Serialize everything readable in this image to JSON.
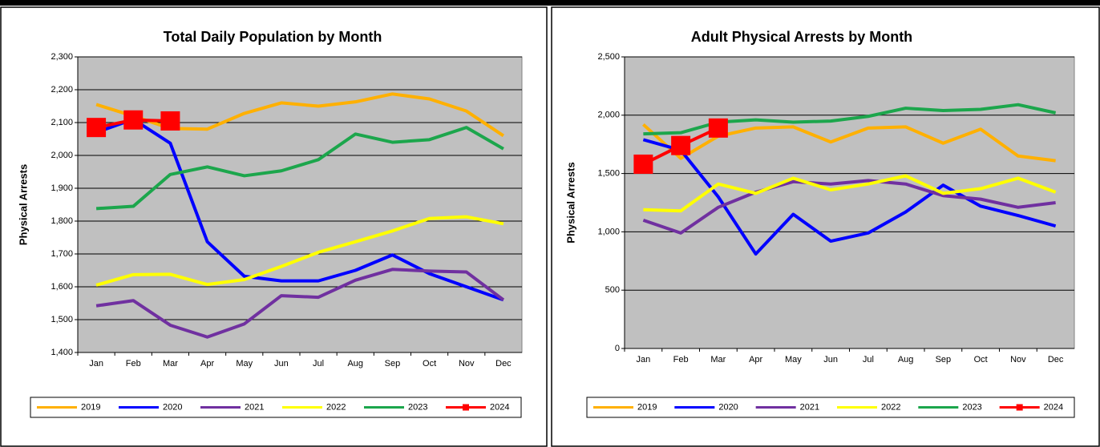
{
  "chart_data": [
    {
      "type": "line",
      "title": "Total Daily Population by Month",
      "y_label": "Physical Arrests",
      "categories": [
        "Jan",
        "Feb",
        "Mar",
        "Apr",
        "May",
        "Jun",
        "Jul",
        "Aug",
        "Sep",
        "Oct",
        "Nov",
        "Dec"
      ],
      "ylim": [
        1400,
        2300
      ],
      "yticks": [
        {
          "value": 1400,
          "label": "1,400"
        },
        {
          "value": 1500,
          "label": "1,500"
        },
        {
          "value": 1600,
          "label": "1,600"
        },
        {
          "value": 1700,
          "label": "1,700"
        },
        {
          "value": 1800,
          "label": "1,800"
        },
        {
          "value": 1900,
          "label": "1,900"
        },
        {
          "value": 2000,
          "label": "2,000"
        },
        {
          "value": 2100,
          "label": "2,100"
        },
        {
          "value": 2200,
          "label": "2,200"
        },
        {
          "value": 2300,
          "label": "2,300"
        }
      ],
      "grid": true,
      "legend": "bottom",
      "series": [
        {
          "name": "2019",
          "color": "#ffb000",
          "values": [
            2155,
            2120,
            2082,
            2080,
            2128,
            2160,
            2150,
            2163,
            2187,
            2172,
            2135,
            2060
          ]
        },
        {
          "name": "2020",
          "color": "#0000ff",
          "values": [
            2070,
            2110,
            2037,
            1737,
            1632,
            1618,
            1618,
            1650,
            1697,
            1640,
            1600,
            1560
          ]
        },
        {
          "name": "2021",
          "color": "#7030a0",
          "values": [
            1542,
            1558,
            1483,
            1447,
            1487,
            1573,
            1568,
            1620,
            1653,
            1648,
            1645,
            1560
          ]
        },
        {
          "name": "2022",
          "color": "#ffff00",
          "values": [
            1605,
            1637,
            1638,
            1607,
            1622,
            1662,
            1705,
            1737,
            1770,
            1808,
            1813,
            1792
          ]
        },
        {
          "name": "2023",
          "color": "#1ca64c",
          "values": [
            1838,
            1845,
            1942,
            1965,
            1938,
            1953,
            1987,
            2065,
            2040,
            2048,
            2085,
            2020
          ]
        },
        {
          "name": "2024",
          "color": "#ff0000",
          "marker": "square",
          "values": [
            2085,
            2108,
            2105,
            null,
            null,
            null,
            null,
            null,
            null,
            null,
            null,
            null
          ]
        }
      ]
    },
    {
      "type": "line",
      "title": "Adult Physical Arrests by Month",
      "y_label": "Physical Arrests",
      "categories": [
        "Jan",
        "Feb",
        "Mar",
        "Apr",
        "May",
        "Jun",
        "Jul",
        "Aug",
        "Sep",
        "Oct",
        "Nov",
        "Dec"
      ],
      "ylim": [
        0,
        2500
      ],
      "yticks": [
        0,
        {
          "value": 500,
          "label": "500"
        },
        {
          "value": 1000,
          "label": "1,000"
        },
        {
          "value": 1500,
          "label": "1,500"
        },
        {
          "value": 2000,
          "label": "2,000"
        },
        {
          "value": 2500,
          "label": "2,500"
        }
      ],
      "grid": true,
      "legend": "bottom",
      "series": [
        {
          "name": "2019",
          "color": "#ffb000",
          "values": [
            1920,
            1630,
            1820,
            1890,
            1900,
            1770,
            1890,
            1900,
            1760,
            1880,
            1650,
            1610
          ]
        },
        {
          "name": "2020",
          "color": "#0000ff",
          "values": [
            1790,
            1700,
            1300,
            810,
            1150,
            920,
            990,
            1170,
            1400,
            1220,
            1140,
            1050
          ]
        },
        {
          "name": "2021",
          "color": "#7030a0",
          "values": [
            1100,
            990,
            1210,
            1340,
            1430,
            1410,
            1440,
            1410,
            1310,
            1280,
            1210,
            1250
          ]
        },
        {
          "name": "2022",
          "color": "#ffff00",
          "values": [
            1190,
            1180,
            1410,
            1330,
            1460,
            1360,
            1410,
            1480,
            1330,
            1370,
            1460,
            1340
          ]
        },
        {
          "name": "2023",
          "color": "#1ca64c",
          "values": [
            1840,
            1850,
            1940,
            1960,
            1940,
            1950,
            1990,
            2060,
            2040,
            2050,
            2090,
            2020
          ]
        },
        {
          "name": "2024",
          "color": "#ff0000",
          "marker": "square",
          "values": [
            1580,
            1740,
            1890,
            null,
            null,
            null,
            null,
            null,
            null,
            null,
            null,
            null
          ]
        }
      ]
    }
  ]
}
